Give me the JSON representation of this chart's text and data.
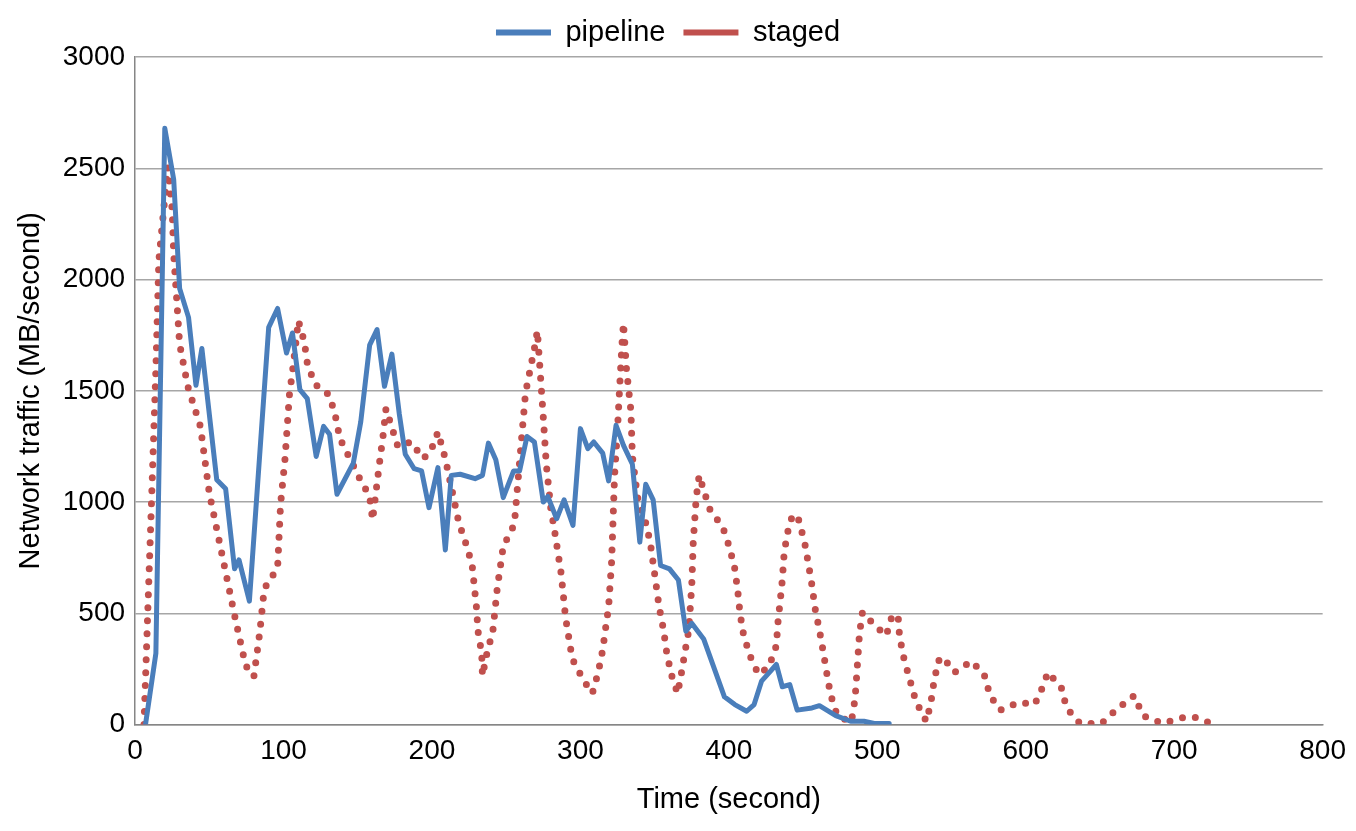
{
  "chart_data": {
    "type": "line",
    "xlabel": "Time (second)",
    "ylabel": "Network traffic (MB/second)",
    "xlim": [
      0,
      800
    ],
    "xticks": [
      0,
      100,
      200,
      300,
      400,
      500,
      600,
      700,
      800
    ],
    "ylim": [
      0,
      3000
    ],
    "yticks": [
      0,
      500,
      1000,
      1500,
      2000,
      2500,
      3000
    ],
    "grid": "y",
    "legend": "top",
    "marker": "none",
    "series": [
      {
        "name": "pipeline",
        "color": "#4a7ebb",
        "line_style": "solid",
        "x": [
          7,
          14,
          20,
          26,
          30,
          36,
          41,
          45,
          55,
          61,
          67,
          70,
          77,
          90,
          96,
          102,
          106,
          111,
          116,
          122,
          127,
          131,
          136,
          147,
          152,
          158,
          163,
          168,
          173,
          178,
          182,
          188,
          193,
          198,
          204,
          209,
          213,
          219,
          229,
          234,
          238,
          243,
          248,
          255,
          259,
          264,
          269,
          275,
          278,
          284,
          289,
          295,
          300,
          305,
          309,
          315,
          319,
          324,
          329,
          335,
          340,
          344,
          349,
          354,
          360,
          366,
          371,
          375,
          383,
          390,
          397,
          404,
          412,
          417,
          422,
          432,
          436,
          441,
          446,
          456,
          461,
          472,
          482,
          491,
          498,
          508
        ],
        "values": [
          0,
          320,
          2680,
          2450,
          1960,
          1830,
          1525,
          1690,
          1100,
          1060,
          700,
          740,
          555,
          1785,
          1870,
          1670,
          1760,
          1505,
          1465,
          1205,
          1340,
          1305,
          1035,
          1175,
          1360,
          1705,
          1775,
          1520,
          1665,
          1395,
          1215,
          1150,
          1140,
          975,
          1155,
          785,
          1120,
          1125,
          1105,
          1120,
          1265,
          1190,
          1020,
          1140,
          1140,
          1295,
          1270,
          1000,
          1025,
          925,
          1010,
          895,
          1330,
          1240,
          1270,
          1220,
          1095,
          1345,
          1255,
          1170,
          820,
          1080,
          1010,
          715,
          700,
          650,
          420,
          455,
          385,
          255,
          125,
          90,
          60,
          90,
          195,
          270,
          170,
          180,
          65,
          75,
          85,
          40,
          15,
          15,
          5,
          5
        ]
      },
      {
        "name": "staged",
        "color": "#c0504d",
        "line_style": "dotted",
        "x": [
          6,
          8.5,
          11,
          14,
          16,
          19,
          22,
          25,
          26,
          28,
          30,
          35.5,
          44,
          50,
          59,
          68,
          74.5,
          80,
          84,
          87,
          96,
          98,
          101,
          104,
          106,
          110,
          114,
          116,
          121,
          131,
          135,
          138,
          144,
          151,
          158,
          160,
          165,
          167,
          169,
          173,
          177,
          186,
          194,
          199,
          204,
          209,
          212,
          218,
          223,
          227,
          230,
          231,
          233.5,
          234,
          237,
          241,
          244,
          248,
          255.5,
          258,
          260.5,
          263,
          266,
          269,
          271,
          273,
          275,
          277,
          280,
          282.5,
          287,
          290,
          294.5,
          302,
          308,
          312,
          315,
          317,
          319,
          321,
          322,
          323,
          325,
          326.5,
          328,
          329,
          331,
          334,
          335,
          338.5,
          343.5,
          347,
          349,
          353,
          356,
          358,
          361,
          365.5,
          368,
          370.5,
          373,
          375,
          376,
          378,
          380,
          383,
          387,
          396,
          400.5,
          404,
          406,
          407.5,
          410,
          414.5,
          420,
          427,
          432,
          433,
          434.5,
          436,
          437,
          439,
          443,
          447,
          451,
          453.5,
          456,
          458,
          461,
          463.5,
          466,
          468.5,
          473,
          482.5,
          485,
          486,
          487,
          488,
          490,
          498.5,
          506,
          510,
          514,
          515,
          518,
          522,
          526,
          533,
          536,
          538,
          541,
          544,
          552,
          563.5,
          572,
          576,
          583,
          595.5,
          606,
          610.5,
          615,
          624,
          627.5,
          636.5,
          651,
          661.5,
          673,
          679,
          692,
          705,
          713,
          725
        ],
        "values": [
          0,
          500,
          990,
          1595,
          2085,
          2295,
          2505,
          2315,
          2115,
          1915,
          1710,
          1520,
          1340,
          1040,
          750,
          460,
          265,
          215,
          415,
          610,
          705,
          990,
          1195,
          1485,
          1585,
          1815,
          1720,
          1625,
          1530,
          1480,
          1385,
          1285,
          1205,
          1110,
          1025,
          920,
          1195,
          1295,
          1420,
          1335,
          1250,
          1270,
          1195,
          1225,
          1315,
          1195,
          1100,
          910,
          810,
          720,
          525,
          420,
          320,
          220,
          320,
          420,
          615,
          800,
          900,
          1100,
          1295,
          1490,
          1590,
          1690,
          1770,
          1575,
          1380,
          1170,
          975,
          875,
          680,
          480,
          295,
          200,
          140,
          235,
          335,
          435,
          530,
          730,
          925,
          1120,
          1330,
          1525,
          1710,
          1805,
          1600,
          1410,
          1205,
          1020,
          920,
          820,
          725,
          530,
          425,
          330,
          230,
          140,
          230,
          330,
          425,
          625,
          820,
          1020,
          1120,
          1055,
          970,
          885,
          795,
          700,
          600,
          500,
          400,
          305,
          225,
          260,
          355,
          455,
          550,
          650,
          750,
          850,
          945,
          920,
          820,
          725,
          625,
          525,
          425,
          330,
          230,
          135,
          40,
          10,
          115,
          210,
          310,
          410,
          505,
          445,
          400,
          490,
          490,
          395,
          295,
          200,
          105,
          15,
          95,
          185,
          285,
          305,
          235,
          285,
          225,
          130,
          65,
          100,
          90,
          155,
          235,
          165,
          75,
          5,
          5,
          70,
          130,
          40,
          5,
          30,
          35,
          5
        ]
      }
    ]
  }
}
